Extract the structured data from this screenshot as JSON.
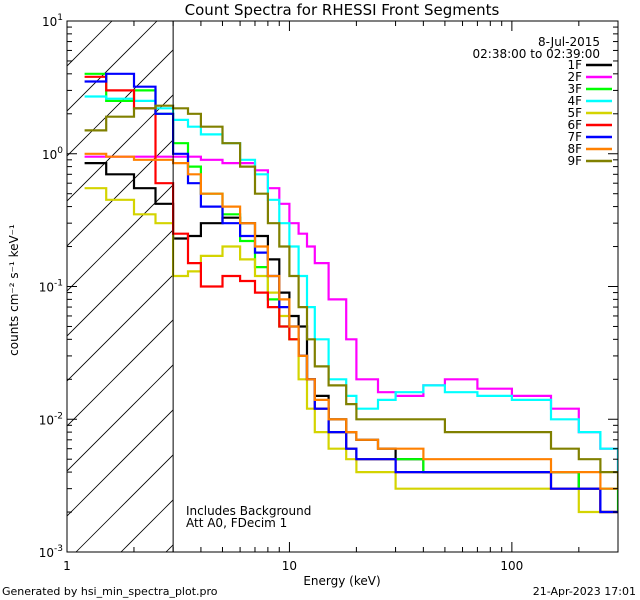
{
  "chart_data": {
    "type": "line",
    "title": "Count Spectra for RHESSI Front Segments",
    "xlabel": "Energy (keV)",
    "ylabel": "counts cm⁻² s⁻¹ keV⁻¹",
    "xscale": "log",
    "yscale": "log",
    "xlim": [
      1,
      300
    ],
    "ylim": [
      0.001,
      10
    ],
    "x_major_ticks": [
      1,
      10,
      100
    ],
    "y_major_ticks": [
      0.001,
      0.01,
      0.1,
      1,
      10
    ],
    "x_tick_labels": [
      "1",
      "10",
      "100"
    ],
    "y_tick_labels": [
      {
        "base": "10",
        "exp": "-3"
      },
      {
        "base": "10",
        "exp": "-2"
      },
      {
        "base": "10",
        "exp": "-1"
      },
      {
        "base": "10",
        "exp": "0"
      },
      {
        "base": "10",
        "exp": "1"
      }
    ],
    "date": "8-Jul-2015",
    "time_range": "02:38:00 to 02:39:00",
    "annotations": [
      "Includes Background",
      "Att A0, FDecim 1"
    ],
    "hatched_region_upper_energy": 3,
    "legend_position": "top-right",
    "footer_left": "Generated by hsi_min_spectra_plot.pro",
    "footer_right": "21-Apr-2023 17:01",
    "series": [
      {
        "name": "1F",
        "color": "#000000",
        "x": [
          1.2,
          1.5,
          2,
          2.5,
          3,
          3.5,
          4,
          5,
          6,
          7,
          8,
          9,
          10,
          11,
          12,
          13,
          15,
          18,
          20,
          25,
          30,
          40,
          50,
          70,
          100,
          150,
          200,
          250,
          300
        ],
        "y": [
          0.85,
          0.7,
          0.55,
          0.42,
          0.23,
          0.24,
          0.3,
          0.33,
          0.3,
          0.24,
          0.16,
          0.09,
          0.06,
          0.05,
          0.02,
          0.015,
          0.01,
          0.008,
          0.007,
          0.006,
          0.005,
          0.004,
          0.004,
          0.004,
          0.004,
          0.004,
          0.003,
          0.002,
          0.002
        ]
      },
      {
        "name": "2F",
        "color": "#ff00ff",
        "x": [
          1.2,
          1.5,
          2,
          2.5,
          3,
          3.5,
          4,
          5,
          6,
          7,
          8,
          9,
          10,
          11,
          12,
          13,
          15,
          18,
          20,
          25,
          30,
          40,
          50,
          70,
          100,
          150,
          200,
          250,
          300
        ],
        "y": [
          0.95,
          0.95,
          0.95,
          0.95,
          0.95,
          0.95,
          0.9,
          0.85,
          0.85,
          0.75,
          0.55,
          0.42,
          0.3,
          0.25,
          0.2,
          0.15,
          0.08,
          0.04,
          0.02,
          0.016,
          0.015,
          0.018,
          0.02,
          0.017,
          0.015,
          0.012,
          0.008,
          0.006,
          0.004
        ]
      },
      {
        "name": "3F",
        "color": "#00ff00",
        "x": [
          1.2,
          1.5,
          2,
          2.5,
          3,
          3.5,
          4,
          5,
          6,
          7,
          8,
          9,
          10,
          11,
          12,
          13,
          15,
          18,
          20,
          25,
          30,
          40,
          50,
          70,
          100,
          150,
          200,
          250,
          300
        ],
        "y": [
          4.0,
          2.5,
          3.0,
          2.0,
          1.2,
          0.8,
          0.5,
          0.35,
          0.22,
          0.14,
          0.08,
          0.05,
          0.04,
          0.03,
          0.02,
          0.012,
          0.008,
          0.006,
          0.005,
          0.005,
          0.005,
          0.004,
          0.004,
          0.004,
          0.004,
          0.004,
          0.003,
          0.003,
          0.002
        ]
      },
      {
        "name": "4F",
        "color": "#00ffff",
        "x": [
          1.2,
          1.5,
          2,
          2.5,
          3,
          3.5,
          4,
          5,
          6,
          7,
          8,
          9,
          10,
          11,
          12,
          13,
          15,
          18,
          20,
          25,
          30,
          40,
          50,
          70,
          100,
          150,
          200,
          250,
          300
        ],
        "y": [
          2.7,
          2.6,
          2.5,
          2.2,
          1.8,
          1.6,
          1.4,
          1.2,
          0.9,
          0.7,
          0.45,
          0.3,
          0.2,
          0.12,
          0.07,
          0.04,
          0.02,
          0.015,
          0.012,
          0.014,
          0.016,
          0.018,
          0.016,
          0.015,
          0.014,
          0.01,
          0.008,
          0.006,
          0.004
        ]
      },
      {
        "name": "5F",
        "color": "#d4d400",
        "x": [
          1.2,
          1.5,
          2,
          2.5,
          3,
          3.5,
          4,
          5,
          6,
          7,
          8,
          9,
          10,
          11,
          12,
          13,
          15,
          18,
          20,
          25,
          30,
          40,
          50,
          70,
          100,
          150,
          200,
          250,
          300
        ],
        "y": [
          0.55,
          0.45,
          0.35,
          0.3,
          0.12,
          0.13,
          0.17,
          0.2,
          0.16,
          0.12,
          0.09,
          0.06,
          0.04,
          0.02,
          0.012,
          0.008,
          0.006,
          0.005,
          0.004,
          0.004,
          0.003,
          0.003,
          0.003,
          0.003,
          0.003,
          0.003,
          0.002,
          0.002,
          0.002
        ]
      },
      {
        "name": "6F",
        "color": "#ff0000",
        "x": [
          1.2,
          1.5,
          2,
          2.5,
          3,
          3.5,
          4,
          5,
          6,
          7,
          8,
          9,
          10,
          11,
          12,
          13,
          15,
          18,
          20,
          25,
          30,
          40,
          50,
          70,
          100,
          150,
          200,
          250,
          300
        ],
        "y": [
          3.8,
          3.0,
          2.2,
          0.6,
          0.25,
          0.15,
          0.1,
          0.12,
          0.11,
          0.09,
          0.07,
          0.05,
          0.04,
          0.03,
          0.02,
          0.012,
          0.008,
          0.006,
          0.005,
          0.005,
          0.004,
          0.004,
          0.004,
          0.004,
          0.004,
          0.003,
          0.003,
          0.002,
          0.002
        ]
      },
      {
        "name": "7F",
        "color": "#0000ff",
        "x": [
          1.2,
          1.5,
          2,
          2.5,
          3,
          3.5,
          4,
          5,
          6,
          7,
          8,
          9,
          10,
          11,
          12,
          13,
          15,
          18,
          20,
          25,
          30,
          40,
          50,
          70,
          100,
          150,
          200,
          250,
          300
        ],
        "y": [
          3.5,
          4.0,
          3.2,
          2.0,
          1.0,
          0.6,
          0.4,
          0.3,
          0.24,
          0.18,
          0.12,
          0.07,
          0.05,
          0.03,
          0.02,
          0.012,
          0.008,
          0.006,
          0.005,
          0.005,
          0.004,
          0.004,
          0.004,
          0.004,
          0.004,
          0.003,
          0.003,
          0.002,
          0.002
        ]
      },
      {
        "name": "8F",
        "color": "#ff8000",
        "x": [
          1.2,
          1.5,
          2,
          2.5,
          3,
          3.5,
          4,
          5,
          6,
          7,
          8,
          9,
          10,
          11,
          12,
          13,
          15,
          18,
          20,
          25,
          30,
          40,
          50,
          70,
          100,
          150,
          200,
          250,
          300
        ],
        "y": [
          1.0,
          0.95,
          0.9,
          0.9,
          0.85,
          0.7,
          0.5,
          0.4,
          0.3,
          0.2,
          0.12,
          0.08,
          0.05,
          0.03,
          0.02,
          0.014,
          0.01,
          0.008,
          0.007,
          0.006,
          0.006,
          0.005,
          0.005,
          0.005,
          0.005,
          0.004,
          0.004,
          0.003,
          0.003
        ]
      },
      {
        "name": "9F",
        "color": "#808000",
        "x": [
          1.2,
          1.5,
          2,
          2.5,
          3,
          3.5,
          4,
          5,
          6,
          7,
          8,
          9,
          10,
          11,
          12,
          13,
          15,
          18,
          20,
          25,
          30,
          40,
          50,
          70,
          100,
          150,
          200,
          250,
          300
        ],
        "y": [
          1.5,
          1.9,
          2.2,
          2.3,
          2.2,
          2.0,
          1.6,
          1.2,
          0.8,
          0.5,
          0.3,
          0.2,
          0.12,
          0.07,
          0.04,
          0.025,
          0.018,
          0.013,
          0.01,
          0.01,
          0.01,
          0.01,
          0.008,
          0.008,
          0.008,
          0.006,
          0.005,
          0.004,
          0.003
        ]
      }
    ]
  }
}
